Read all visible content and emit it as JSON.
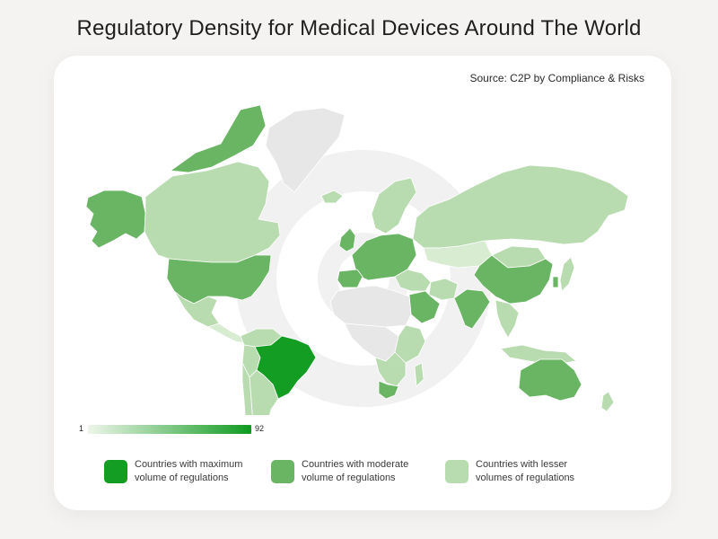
{
  "title": "Regulatory Density for Medical Devices Around The World",
  "source": "Source: C2P by Compliance & Risks",
  "scale": {
    "min": "1",
    "max": "92"
  },
  "legend": [
    {
      "label": "Countries with maximum volume of regulations",
      "color": "#149d23"
    },
    {
      "label": "Countries with moderate volume of regulations",
      "color": "#69b563"
    },
    {
      "label": "Countries with lesser volumes of regulations",
      "color": "#b8dcb0"
    }
  ],
  "colors": {
    "max": "#149d23",
    "moderate": "#69b563",
    "lesser": "#b8dcb0",
    "lightest": "#d8ecd2",
    "nodata": "#e7e7e7"
  },
  "regions": [
    {
      "name": "Alaska",
      "level": "moderate"
    },
    {
      "name": "Canada",
      "level": "lesser"
    },
    {
      "name": "Canadian Arctic Islands",
      "level": "moderate"
    },
    {
      "name": "Greenland",
      "level": "nodata"
    },
    {
      "name": "United States",
      "level": "moderate"
    },
    {
      "name": "Mexico",
      "level": "lesser"
    },
    {
      "name": "Central America",
      "level": "lightest"
    },
    {
      "name": "Colombia",
      "level": "lesser"
    },
    {
      "name": "Peru",
      "level": "lesser"
    },
    {
      "name": "Brazil",
      "level": "max"
    },
    {
      "name": "Argentina",
      "level": "lesser"
    },
    {
      "name": "Chile",
      "level": "lesser"
    },
    {
      "name": "Iceland",
      "level": "lesser"
    },
    {
      "name": "Scandinavia",
      "level": "lesser"
    },
    {
      "name": "United Kingdom",
      "level": "moderate"
    },
    {
      "name": "Europe",
      "level": "moderate"
    },
    {
      "name": "Spain",
      "level": "moderate"
    },
    {
      "name": "Russia",
      "level": "lesser"
    },
    {
      "name": "Kazakhstan",
      "level": "lightest"
    },
    {
      "name": "Mongolia",
      "level": "lesser"
    },
    {
      "name": "China",
      "level": "moderate"
    },
    {
      "name": "Japan",
      "level": "lesser"
    },
    {
      "name": "South Korea",
      "level": "moderate"
    },
    {
      "name": "Middle East",
      "level": "lesser"
    },
    {
      "name": "Saudi Arabia",
      "level": "moderate"
    },
    {
      "name": "Iran",
      "level": "lesser"
    },
    {
      "name": "India",
      "level": "moderate"
    },
    {
      "name": "Southeast Asia",
      "level": "lesser"
    },
    {
      "name": "Indonesia",
      "level": "lesser"
    },
    {
      "name": "North Africa",
      "level": "nodata"
    },
    {
      "name": "Central Africa",
      "level": "nodata"
    },
    {
      "name": "East Africa",
      "level": "lesser"
    },
    {
      "name": "Southern Africa",
      "level": "lesser"
    },
    {
      "name": "South Africa",
      "level": "moderate"
    },
    {
      "name": "Madagascar",
      "level": "lesser"
    },
    {
      "name": "Australia",
      "level": "moderate"
    },
    {
      "name": "New Zealand",
      "level": "lesser"
    }
  ]
}
